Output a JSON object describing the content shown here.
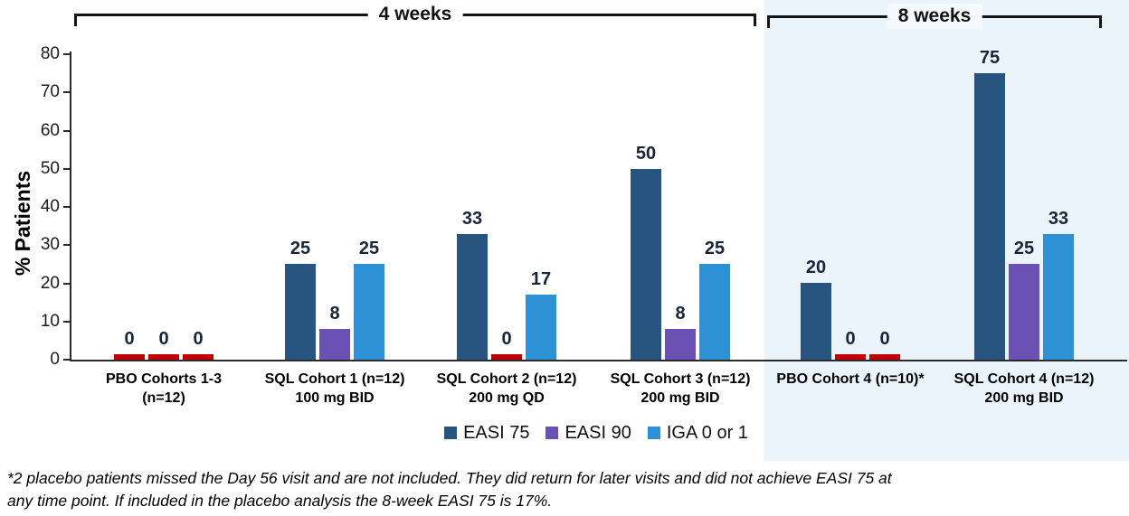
{
  "brackets": {
    "four_weeks": "4 weeks",
    "eight_weeks": "8 weeks"
  },
  "footnote": {
    "lines": [
      "*2 placebo patients missed the Day 56 visit and are not included. They did return for later visits and did not achieve EASI 75 at",
      "any time point. If included in the placebo analysis the 8-week EASI 75 is 17%."
    ]
  },
  "colors": {
    "easi75": "#27557F",
    "easi90": "#6B51B4",
    "iga": "#2E91D6",
    "zero_marker": "#C00000",
    "eight_week_panel": "#EBF3FB",
    "value_label": "#17253B",
    "axis": "#2B2B2B"
  },
  "chart_data": {
    "type": "bar",
    "title": "",
    "xlabel": "",
    "ylabel": "% Patients",
    "ylim": [
      0,
      80
    ],
    "yticks": [
      0,
      10,
      20,
      30,
      40,
      50,
      60,
      70,
      80
    ],
    "grid": false,
    "legend_position": "bottom",
    "sections": [
      {
        "label": "4 weeks",
        "category_indices": [
          0,
          1,
          2,
          3
        ]
      },
      {
        "label": "8 weeks",
        "category_indices": [
          4,
          5
        ]
      }
    ],
    "categories": [
      {
        "lines": [
          "PBO Cohorts 1-3",
          "(n=12)"
        ]
      },
      {
        "lines": [
          "SQL Cohort 1 (n=12)",
          "100 mg BID"
        ]
      },
      {
        "lines": [
          "SQL Cohort 2 (n=12)",
          "200 mg QD"
        ]
      },
      {
        "lines": [
          "SQL Cohort 3 (n=12)",
          "200 mg BID"
        ]
      },
      {
        "lines": [
          "PBO Cohort 4 (n=10)*"
        ]
      },
      {
        "lines": [
          "SQL Cohort 4 (n=12)",
          "200 mg BID"
        ]
      }
    ],
    "series": [
      {
        "name": "EASI 75",
        "color": "#27557F",
        "values": [
          0,
          25,
          33,
          50,
          20,
          75
        ]
      },
      {
        "name": "EASI 90",
        "color": "#6B51B4",
        "values": [
          0,
          8,
          0,
          8,
          0,
          25
        ]
      },
      {
        "name": "IGA 0 or 1",
        "color": "#2E91D6",
        "values": [
          0,
          25,
          17,
          25,
          0,
          33
        ]
      }
    ],
    "zero_values_shown_as": "red baseline markers"
  }
}
